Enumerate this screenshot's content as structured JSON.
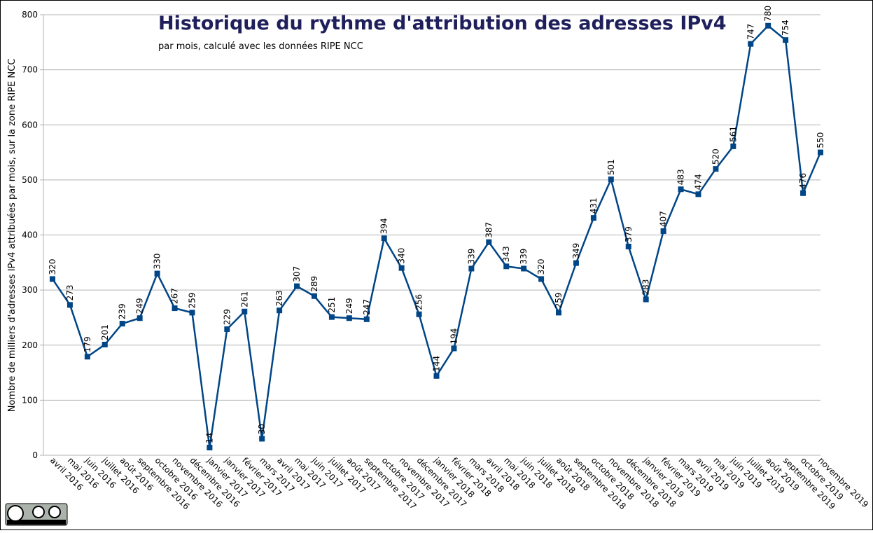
{
  "chart_data": {
    "type": "line",
    "title": "Historique du rythme d'attribution des adresses IPv4",
    "subtitle": "par mois, calculé avec les données RIPE NCC",
    "y_label": "Nombre de milliers d'adresses IPv4 attribuées par mois, sur la zone RIPE NCC",
    "categories": [
      "avril 2016",
      "mai 2016",
      "juin 2016",
      "juillet 2016",
      "août 2016",
      "septembre 2016",
      "octobre 2016",
      "novembre 2016",
      "décembre 2016",
      "janvier 2017",
      "janvier 2017",
      "février 2017",
      "mars 2017",
      "avril 2017",
      "mai 2017",
      "juin 2017",
      "juillet 2017",
      "août 2017",
      "septembre 2017",
      "octobre 2017",
      "novembre 2017",
      "décembre 2017",
      "janvier 2018",
      "février 2018",
      "mars 2018",
      "avril 2018",
      "mai 2018",
      "juin 2018",
      "juillet 2018",
      "août 2018",
      "septembre 2018",
      "octobre 2018",
      "novembre 2018",
      "décembre 2018",
      "janvier 2019",
      "février 2019",
      "mars 2019",
      "avril 2019",
      "mai 2019",
      "juin 2019",
      "juillet 2019",
      "août 2019",
      "septembre 2019",
      "octobre 2019",
      "novembre 2019"
    ],
    "series": [
      {
        "color": "#004586",
        "values": [
          320,
          273,
          179,
          201,
          239,
          249,
          330,
          267,
          259,
          14,
          229,
          261,
          30,
          263,
          307,
          289,
          251,
          249,
          247,
          394,
          340,
          256,
          144,
          194,
          339,
          387,
          343,
          339,
          320,
          259,
          349,
          431,
          501,
          379,
          283,
          407,
          483,
          474,
          520,
          561,
          747,
          780,
          754,
          476,
          550
        ]
      }
    ],
    "ylim": [
      0,
      800
    ],
    "yticks": [
      0,
      100,
      200,
      300,
      400,
      500,
      600,
      700,
      800
    ],
    "grid": true
  }
}
